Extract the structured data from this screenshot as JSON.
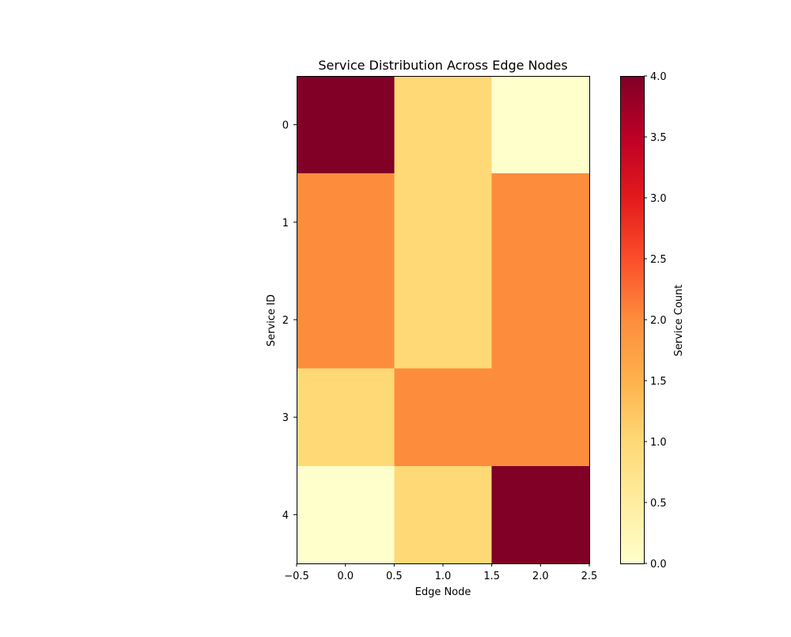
{
  "chart_data": {
    "type": "heatmap",
    "title": "Service Distribution Across Edge Nodes",
    "xlabel": "Edge Node",
    "ylabel": "Service ID",
    "x_ticks": [
      "−0.5",
      "0.0",
      "0.5",
      "1.0",
      "1.5",
      "2.0",
      "2.5"
    ],
    "y_ticks": [
      "0",
      "1",
      "2",
      "3",
      "4"
    ],
    "x_categories": [
      0,
      1,
      2
    ],
    "y_categories": [
      0,
      1,
      2,
      3,
      4
    ],
    "values": [
      [
        4,
        1,
        0
      ],
      [
        2,
        1,
        2
      ],
      [
        2,
        1,
        2
      ],
      [
        1,
        2,
        2
      ],
      [
        0,
        1,
        4
      ]
    ],
    "xlim": [
      -0.5,
      2.5
    ],
    "ylim": [
      4.5,
      -0.5
    ],
    "colormap": "YlOrRd",
    "colorbar": {
      "label": "Service Count",
      "range": [
        0,
        4
      ],
      "ticks": [
        "0.0",
        "0.5",
        "1.0",
        "1.5",
        "2.0",
        "2.5",
        "3.0",
        "3.5",
        "4.0"
      ],
      "tick_values": [
        0,
        0.5,
        1,
        1.5,
        2,
        2.5,
        3,
        3.5,
        4
      ],
      "gradient_colors": [
        "#ffffcc",
        "#ffeda0",
        "#fed976",
        "#feb24c",
        "#fd8d3c",
        "#fc4e2a",
        "#e31a1c",
        "#bd0026",
        "#800026"
      ]
    },
    "grid": false
  }
}
